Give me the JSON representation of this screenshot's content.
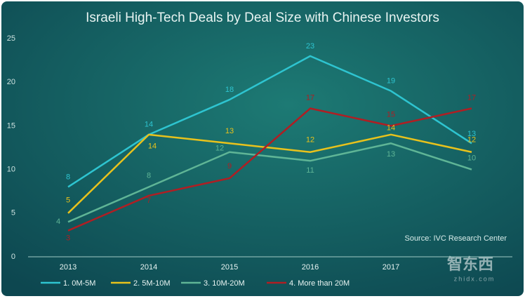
{
  "chart_data": {
    "type": "line",
    "title": "Israeli High-Tech Deals by Deal Size with Chinese Investors",
    "categories": [
      "2013",
      "2014",
      "2015",
      "2016",
      "2017",
      null
    ],
    "series": [
      {
        "name": "1. 0M-5M",
        "color": "#2ec4d0",
        "values": [
          8,
          14,
          18,
          23,
          19,
          13
        ]
      },
      {
        "name": "2. 5M-10M",
        "color": "#e8c21c",
        "values": [
          5,
          14,
          13,
          12,
          14,
          12
        ]
      },
      {
        "name": "3. 10M-20M",
        "color": "#5fb596",
        "values": [
          4,
          8,
          12,
          11,
          13,
          10
        ]
      },
      {
        "name": "4. More than 20M",
        "color": "#b01e23",
        "values": [
          3,
          7,
          9,
          17,
          15,
          17
        ]
      }
    ],
    "ylim": [
      0,
      25
    ],
    "yticks": [
      0,
      5,
      10,
      15,
      20,
      25
    ],
    "source": "Source: IVC Research Center",
    "watermark": {
      "logo": "智东西",
      "site": "zhidx.com"
    }
  }
}
